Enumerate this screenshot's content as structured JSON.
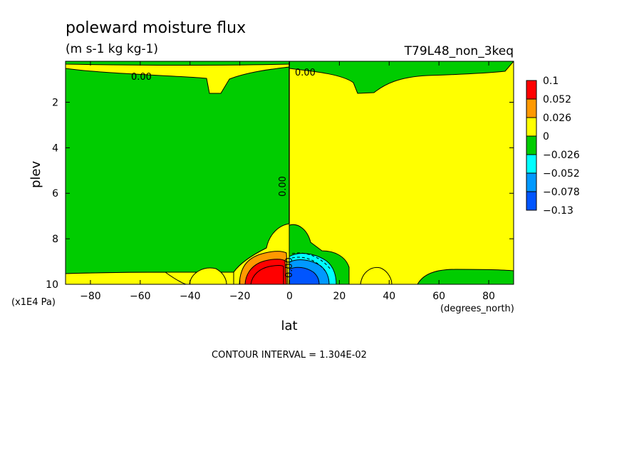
{
  "chart_data": {
    "type": "heatmap",
    "plot_kind": "filled latitude-pressure contour",
    "title": "poleward moisture flux",
    "units": "(m s-1 kg kg-1)",
    "experiment": "T79L48_non_3keq",
    "xlabel": "lat",
    "xunits": "(degrees_north)",
    "ylabel": "plev",
    "yunits": "(x1E4 Pa)",
    "xlim": [
      -90,
      90
    ],
    "ylim": [
      10,
      0.2
    ],
    "y_inverted": true,
    "x_ticks": [
      "-80",
      "-60",
      "-40",
      "-20",
      "0",
      "20",
      "40",
      "60",
      "80"
    ],
    "y_ticks": [
      "2",
      "4",
      "6",
      "8",
      "10"
    ],
    "contour_interval_text": "CONTOUR INTERVAL = 1.304E-02",
    "contour_labels": [
      "0.00",
      "0.00",
      "0.00",
      "0.00"
    ],
    "colorbar": {
      "labels": [
        "0.1",
        "0.052",
        "0.026",
        "0",
        "−0.026",
        "−0.052",
        "−0.078",
        "−0.13"
      ],
      "colors": [
        "#ff0000",
        "#ff9900",
        "#ffff00",
        "#00cc00",
        "#00ffff",
        "#0099ff",
        "#0055ff"
      ]
    },
    "regions": [
      {
        "name": "southern-hemisphere-negative",
        "sign": "negative",
        "lat": [
          -90,
          0
        ],
        "plev": [
          0.8,
          9.5
        ],
        "color": "#00cc00"
      },
      {
        "name": "northern-hemisphere-positive",
        "sign": "positive",
        "lat": [
          0,
          90
        ],
        "plev": [
          0.5,
          10
        ],
        "color": "#ffff00"
      },
      {
        "name": "upper-level-positive-band",
        "sign": "positive",
        "lat": [
          -90,
          0
        ],
        "plev": [
          0.2,
          0.7
        ],
        "color": "#ffff00"
      },
      {
        "name": "upper-level-negative-band-north",
        "sign": "negative",
        "lat": [
          0,
          90
        ],
        "plev": [
          0.2,
          1.3
        ],
        "color": "#00cc00"
      },
      {
        "name": "low-level-positive-max",
        "sign": "positive",
        "lat": [
          -20,
          0
        ],
        "plev": [
          8.4,
          10
        ],
        "peak": 0.1,
        "color": "#ff0000"
      },
      {
        "name": "low-level-negative-min",
        "sign": "negative",
        "lat": [
          0,
          20
        ],
        "plev": [
          8.6,
          10
        ],
        "peak": -0.13,
        "color": "#0055ff"
      },
      {
        "name": "near-surface-negative-north",
        "sign": "negative",
        "lat": [
          20,
          25
        ],
        "plev": [
          8.8,
          10
        ],
        "color": "#00cc00"
      },
      {
        "name": "near-surface-negative-north-midlat",
        "sign": "negative",
        "lat": [
          50,
          90
        ],
        "plev": [
          9.2,
          10
        ],
        "color": "#00cc00"
      }
    ]
  }
}
